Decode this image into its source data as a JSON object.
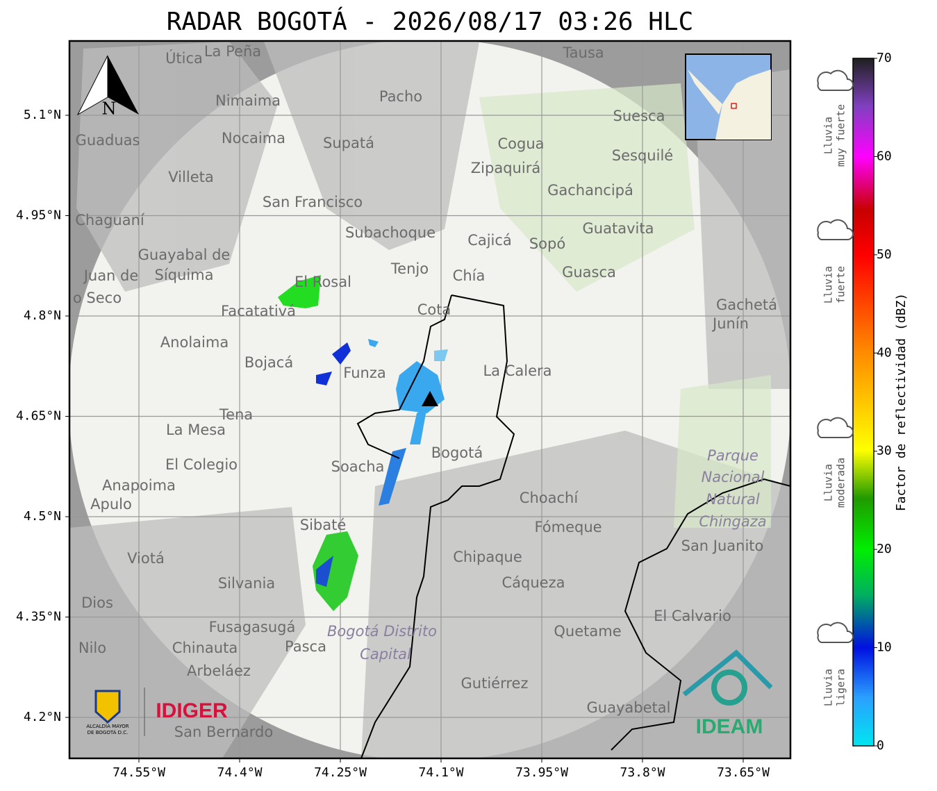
{
  "header": {
    "title": "RADAR BOGOTÁ - 2026/08/17 03:26 HLC"
  },
  "map": {
    "lat_labels": [
      "5.1°N",
      "4.95°N",
      "4.8°N",
      "4.65°N",
      "4.5°N",
      "4.35°N",
      "4.2°N"
    ],
    "lon_labels": [
      "74.55°W",
      "74.4°W",
      "74.25°W",
      "74.1°W",
      "73.95°W",
      "73.8°W",
      "73.65°W"
    ],
    "north": "N",
    "places": [
      "Útica",
      "La Peña",
      "Tausa",
      "Pacho",
      "Nimaima",
      "Suesca",
      "Guaduas",
      "Nocaima",
      "Supatá",
      "Cogua",
      "Sesquilé",
      "Zipaquirá",
      "Villeta",
      "Gachancipá",
      "San Francisco",
      "Chaguaní",
      "Guatavita",
      "Subachoque",
      "Cajicá",
      "Sopó",
      "Guayabal de",
      "Síquima",
      "Tenjo",
      "Guasca",
      "Chía",
      "El Rosal",
      "Gachetá",
      "Junín",
      "Facatativá",
      "Cota",
      "Anolaima",
      "Bojacá",
      "Funza",
      "La Calera",
      "Tena",
      "La Mesa",
      "Bogotá",
      "Parque",
      "Nacional",
      "Natural",
      "Chingaza",
      "Soacha",
      "El Colegio",
      "Anapoima",
      "Apulo",
      "Choachí",
      "Sibaté",
      "Fómeque",
      "San Juanito",
      "Viotá",
      "Chipaque",
      "Silvania",
      "Cáqueza",
      "Dios",
      "El Calvario",
      "Fusagasugá",
      "Bogotá Distrito",
      "Capital",
      "Quetame",
      "Nilo",
      "Chinauta",
      "Pasca",
      "Arbeláez",
      "Gutiérrez",
      "Guayabetal",
      "San Bernardo",
      "Juan de",
      "o Seco"
    ]
  },
  "colorbar": {
    "label": "Factor de reflectividad (dBZ)",
    "ticks": [
      0,
      10,
      20,
      30,
      40,
      50,
      60,
      70
    ],
    "categories": [
      [
        "Lluvia",
        "muy fuerte"
      ],
      [
        "Lluvia",
        "fuerte"
      ],
      [
        "Lluvia",
        "moderada"
      ],
      [
        "Lluvia",
        "ligera"
      ]
    ]
  },
  "logos": {
    "alcaldia": [
      "ALCALDÍA MAYOR",
      "DE BOGOTÁ D.C."
    ],
    "idiger": "IDIGER",
    "ideam": "IDEAM"
  }
}
